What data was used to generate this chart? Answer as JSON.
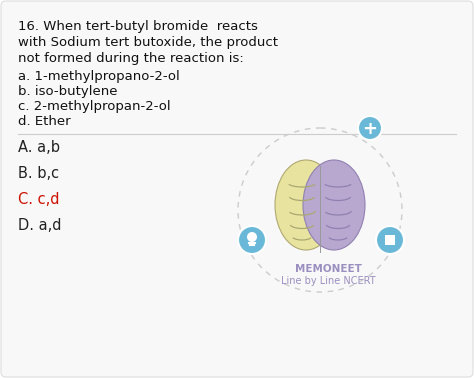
{
  "bg_color": "#ffffff",
  "card_bg": "#f8f8f8",
  "question_line1": "16. When tert-butyl bromide  reacts",
  "question_line2": "with Sodium tert butoxide, the product",
  "question_line3": "not formed during the reaction is:",
  "options": [
    "a. 1-methylpropano-2-ol",
    "b. iso-butylene",
    "c. 2-methylpropan-2-ol",
    "d. Ether"
  ],
  "answers": [
    {
      "label": "A. a,b",
      "color": "#222222"
    },
    {
      "label": "B. b,c",
      "color": "#222222"
    },
    {
      "label": "C. c,d",
      "color": "#cc1100"
    },
    {
      "label": "D. a,d",
      "color": "#222222"
    }
  ],
  "memoneet_text": "MEMONEET",
  "memoneet_subtext": "Line by Line NCERT",
  "memoneet_color": "#9b8fc0",
  "brain_left_color": "#e8e4a0",
  "brain_right_color": "#b8a8d0",
  "dashed_circle_color": "#cccccc",
  "icon_color": "#6ab8d8",
  "text_color": "#111111",
  "divider_color": "#cccccc"
}
